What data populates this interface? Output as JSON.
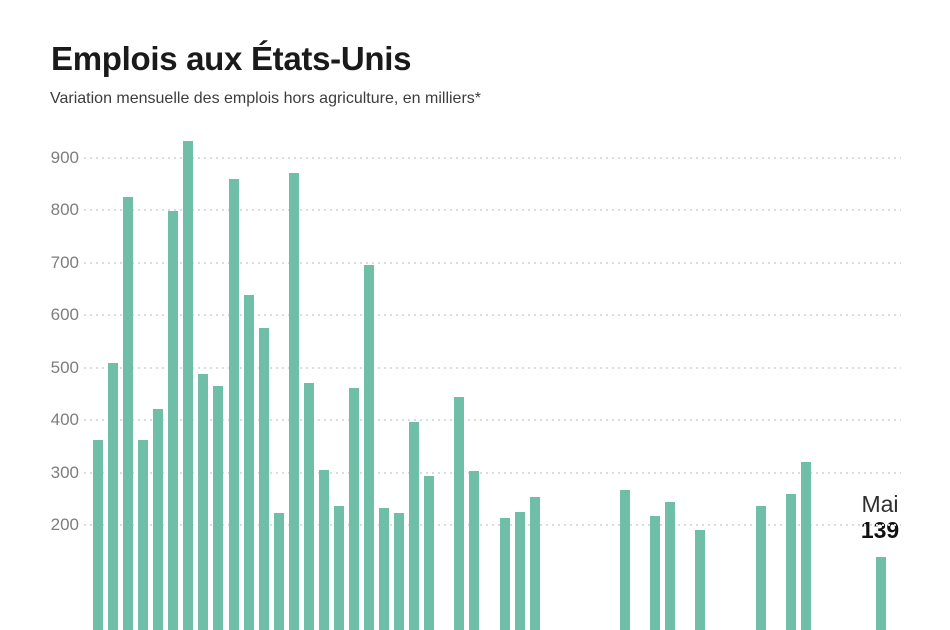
{
  "header": {
    "title": "Emplois aux États-Unis",
    "subtitle": "Variation mensuelle des emplois hors agriculture, en milliers*"
  },
  "chart_data": {
    "type": "bar",
    "title": "Emplois aux États-Unis",
    "subtitle": "Variation mensuelle des emplois hors agriculture, en milliers*",
    "ylabel": "",
    "yticks": [
      200,
      300,
      400,
      500,
      600,
      700,
      800,
      900
    ],
    "ylim_visible": [
      190,
      950
    ],
    "grid": "horizontal-dotted",
    "legend": "none",
    "bar_color": "#6fbea8",
    "values": [
      362,
      509,
      825,
      362,
      421,
      798,
      932,
      487,
      465,
      859,
      638,
      575,
      223,
      870,
      470,
      305,
      236,
      461,
      695,
      232,
      223,
      396,
      293,
      null,
      444,
      303,
      null,
      213,
      225,
      253,
      null,
      null,
      null,
      null,
      null,
      267,
      null,
      218,
      244,
      null,
      190,
      null,
      null,
      null,
      236,
      null,
      259,
      320,
      null,
      null,
      null,
      null,
      139
    ],
    "annotation": {
      "month": "Mai",
      "value": "139"
    }
  },
  "colors": {
    "bar": "#6fbea8",
    "grid": "#dcdcdc",
    "tick_label": "#7e7e7e",
    "title": "#1a1a1a",
    "subtitle": "#3d3d3d"
  }
}
